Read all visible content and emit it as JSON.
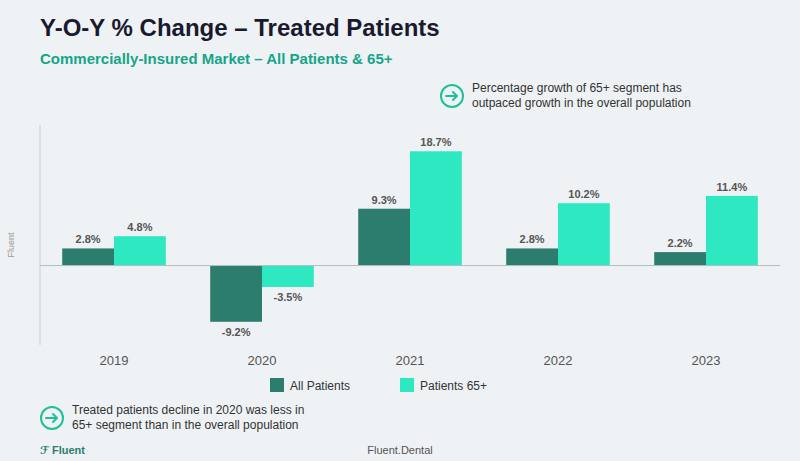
{
  "chart_data": {
    "type": "bar",
    "title": "Y-O-Y % Change – Treated Patients",
    "subtitle": "Commercially-Insured Market – All Patients & 65+",
    "categories": [
      "2019",
      "2020",
      "2021",
      "2022",
      "2023"
    ],
    "series": [
      {
        "name": "All Patients",
        "color": "#2d7d6e",
        "values": [
          2.8,
          -9.2,
          9.3,
          2.8,
          2.2
        ],
        "value_labels": [
          "2.8%",
          "-9.2%",
          "9.3%",
          "2.8%",
          "2.2%"
        ]
      },
      {
        "name": "Patients 65+",
        "color": "#2de8c0",
        "values": [
          4.8,
          -3.5,
          18.7,
          10.2,
          11.4
        ],
        "value_labels": [
          "4.8%",
          "-3.5%",
          "18.7%",
          "10.2%",
          "11.4%"
        ]
      }
    ],
    "ylim": [
      -13,
      23
    ],
    "data_labels": true,
    "tick_labels": "x",
    "grid": false,
    "legend": "bottom",
    "annotations": [
      "Percentage growth of 65+ segment has\noutpaced growth in the overall population",
      "Treated patients decline in 2020 was less in\n65+ segment than in the overall population"
    ],
    "footer": [
      "ℱ Fluent",
      "Fluent.Dental"
    ],
    "side_label": "Fluent"
  }
}
